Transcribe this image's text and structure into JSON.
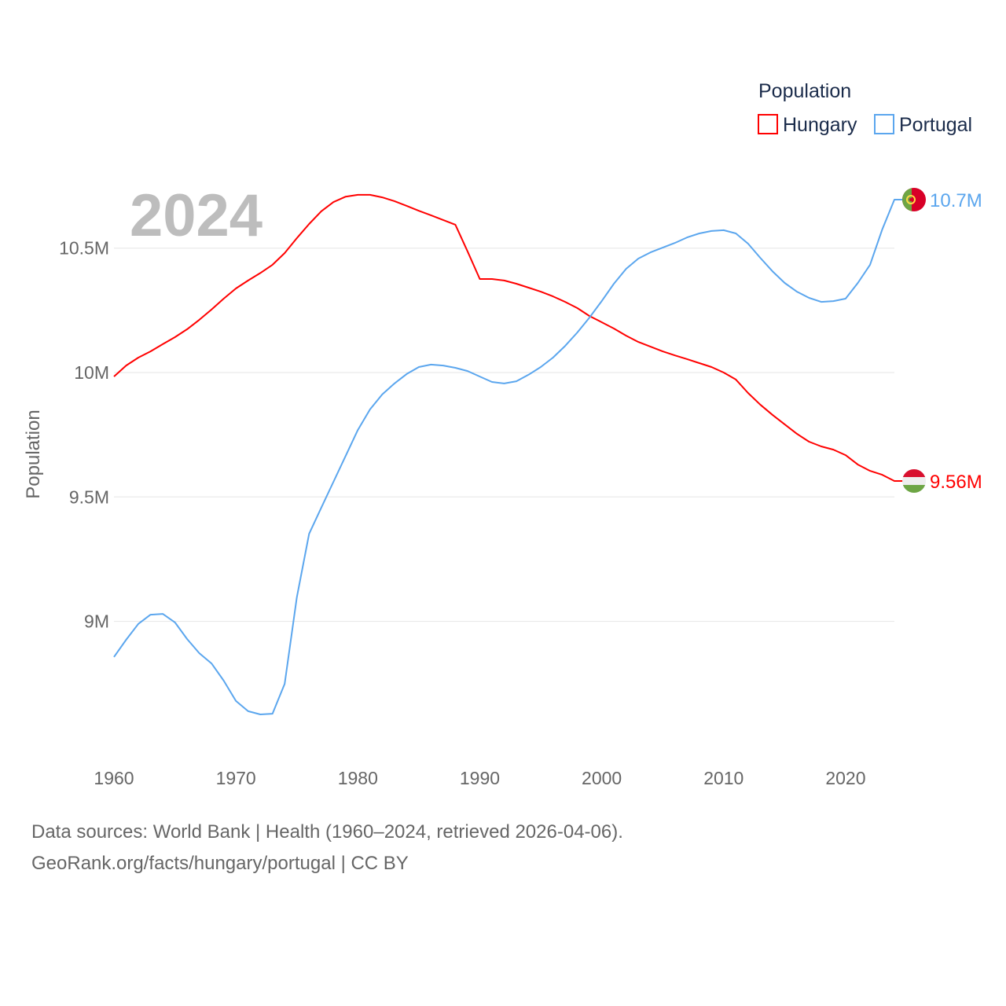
{
  "chart_data": {
    "type": "line",
    "title": "",
    "year_label": "2024",
    "xlabel": "",
    "ylabel": "Population",
    "legend": {
      "title": "Population",
      "position": "top-right"
    },
    "xlim": [
      1960,
      2024
    ],
    "ylim": [
      8.45,
      10.82
    ],
    "x_ticks": [
      1960,
      1970,
      1980,
      1990,
      2000,
      2010,
      2020
    ],
    "x_tick_labels": [
      "1960",
      "1970",
      "1980",
      "1990",
      "2000",
      "2010",
      "2020"
    ],
    "y_ticks": [
      9,
      9.5,
      10,
      10.5
    ],
    "y_tick_labels": [
      "9M",
      "9.5M",
      "10M",
      "10.5M"
    ],
    "grid": true,
    "x": [
      1960,
      1961,
      1962,
      1963,
      1964,
      1965,
      1966,
      1967,
      1968,
      1969,
      1970,
      1971,
      1972,
      1973,
      1974,
      1975,
      1976,
      1977,
      1978,
      1979,
      1980,
      1981,
      1982,
      1983,
      1984,
      1985,
      1986,
      1987,
      1988,
      1989,
      1990,
      1991,
      1992,
      1993,
      1994,
      1995,
      1996,
      1997,
      1998,
      1999,
      2000,
      2001,
      2002,
      2003,
      2004,
      2005,
      2006,
      2007,
      2008,
      2009,
      2010,
      2011,
      2012,
      2013,
      2014,
      2015,
      2016,
      2017,
      2018,
      2019,
      2020,
      2021,
      2022,
      2023,
      2024
    ],
    "series": [
      {
        "name": "Hungary",
        "color": "#ff0000",
        "end_label": "9.56M",
        "flag": "hungary-flag",
        "values": [
          9.984,
          10.028,
          10.06,
          10.085,
          10.114,
          10.142,
          10.174,
          10.212,
          10.253,
          10.297,
          10.338,
          10.37,
          10.4,
          10.433,
          10.48,
          10.54,
          10.597,
          10.648,
          10.685,
          10.707,
          10.714,
          10.714,
          10.704,
          10.689,
          10.67,
          10.65,
          10.632,
          10.613,
          10.594,
          10.486,
          10.376,
          10.376,
          10.37,
          10.357,
          10.341,
          10.325,
          10.306,
          10.284,
          10.259,
          10.227,
          10.202,
          10.177,
          10.148,
          10.123,
          10.104,
          10.085,
          10.069,
          10.054,
          10.038,
          10.022,
          10.0,
          9.972,
          9.918,
          9.871,
          9.83,
          9.792,
          9.754,
          9.722,
          9.703,
          9.69,
          9.668,
          9.63,
          9.605,
          9.589,
          9.564
        ]
      },
      {
        "name": "Portugal",
        "color": "#5ba6ee",
        "end_label": "10.7M",
        "flag": "portugal-flag",
        "values": [
          8.857,
          8.926,
          8.99,
          9.027,
          9.03,
          8.996,
          8.929,
          8.872,
          8.831,
          8.762,
          8.68,
          8.639,
          8.626,
          8.629,
          8.749,
          9.097,
          9.352,
          9.457,
          9.561,
          9.665,
          9.769,
          9.852,
          9.912,
          9.956,
          9.994,
          10.022,
          10.032,
          10.028,
          10.019,
          10.006,
          9.984,
          9.962,
          9.956,
          9.965,
          9.991,
          10.022,
          10.06,
          10.107,
          10.161,
          10.221,
          10.287,
          10.357,
          10.417,
          10.458,
          10.483,
          10.502,
          10.521,
          10.543,
          10.559,
          10.569,
          10.572,
          10.559,
          10.518,
          10.461,
          10.407,
          10.36,
          10.325,
          10.3,
          10.284,
          10.287,
          10.297,
          10.36,
          10.433,
          10.575,
          10.695
        ]
      }
    ]
  },
  "footer": {
    "line1": "Data sources: World Bank | Health (1960–2024, retrieved 2026-04-06).",
    "line2": "GeoRank.org/facts/hungary/portugal | CC BY"
  }
}
